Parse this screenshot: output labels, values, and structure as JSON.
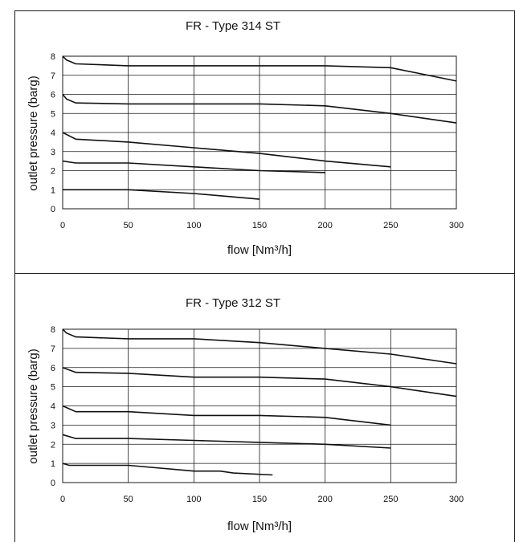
{
  "header": {
    "partial_caption": ""
  },
  "chart_data": [
    {
      "type": "line",
      "title": "FR - Type 314 ST",
      "xlabel": "flow [Nm³/h]",
      "ylabel": "outlet pressure (barg)",
      "xlim": [
        0,
        300
      ],
      "ylim": [
        0,
        8
      ],
      "x_ticks": [
        0,
        50,
        100,
        150,
        200,
        250,
        300
      ],
      "y_ticks": [
        0,
        1,
        2,
        3,
        4,
        5,
        6,
        7,
        8
      ],
      "grid": true,
      "series": [
        {
          "points": [
            [
              0,
              8.0
            ],
            [
              3,
              7.8
            ],
            [
              10,
              7.6
            ],
            [
              50,
              7.5
            ],
            [
              100,
              7.5
            ],
            [
              150,
              7.5
            ],
            [
              200,
              7.5
            ],
            [
              250,
              7.4
            ],
            [
              300,
              6.7
            ]
          ]
        },
        {
          "points": [
            [
              0,
              6.0
            ],
            [
              3,
              5.75
            ],
            [
              10,
              5.55
            ],
            [
              50,
              5.5
            ],
            [
              100,
              5.5
            ],
            [
              150,
              5.5
            ],
            [
              200,
              5.4
            ],
            [
              250,
              5.0
            ],
            [
              300,
              4.5
            ]
          ]
        },
        {
          "points": [
            [
              0,
              4.0
            ],
            [
              10,
              3.65
            ],
            [
              50,
              3.5
            ],
            [
              100,
              3.2
            ],
            [
              150,
              2.9
            ],
            [
              200,
              2.5
            ],
            [
              250,
              2.2
            ]
          ]
        },
        {
          "points": [
            [
              0,
              2.5
            ],
            [
              10,
              2.4
            ],
            [
              50,
              2.4
            ],
            [
              100,
              2.2
            ],
            [
              150,
              2.0
            ],
            [
              200,
              1.9
            ]
          ]
        },
        {
          "points": [
            [
              0,
              1.0
            ],
            [
              50,
              1.0
            ],
            [
              100,
              0.8
            ],
            [
              150,
              0.5
            ]
          ]
        }
      ]
    },
    {
      "type": "line",
      "title": "FR - Type 312 ST",
      "xlabel": "flow [Nm³/h]",
      "ylabel": "outlet pressure (barg)",
      "xlim": [
        0,
        300
      ],
      "ylim": [
        0,
        8
      ],
      "x_ticks": [
        0,
        50,
        100,
        150,
        200,
        250,
        300
      ],
      "y_ticks": [
        0,
        1,
        2,
        3,
        4,
        5,
        6,
        7,
        8
      ],
      "grid": true,
      "series": [
        {
          "points": [
            [
              0,
              8.0
            ],
            [
              3,
              7.8
            ],
            [
              10,
              7.6
            ],
            [
              50,
              7.5
            ],
            [
              100,
              7.5
            ],
            [
              150,
              7.3
            ],
            [
              200,
              7.0
            ],
            [
              250,
              6.7
            ],
            [
              300,
              6.2
            ]
          ]
        },
        {
          "points": [
            [
              0,
              6.0
            ],
            [
              10,
              5.75
            ],
            [
              50,
              5.7
            ],
            [
              100,
              5.5
            ],
            [
              150,
              5.5
            ],
            [
              200,
              5.4
            ],
            [
              250,
              5.0
            ],
            [
              300,
              4.5
            ]
          ]
        },
        {
          "points": [
            [
              0,
              4.0
            ],
            [
              10,
              3.7
            ],
            [
              50,
              3.7
            ],
            [
              100,
              3.5
            ],
            [
              150,
              3.5
            ],
            [
              200,
              3.4
            ],
            [
              250,
              3.0
            ]
          ]
        },
        {
          "points": [
            [
              0,
              2.5
            ],
            [
              10,
              2.3
            ],
            [
              50,
              2.3
            ],
            [
              100,
              2.2
            ],
            [
              150,
              2.1
            ],
            [
              200,
              2.0
            ],
            [
              250,
              1.8
            ]
          ]
        },
        {
          "points": [
            [
              0,
              1.0
            ],
            [
              5,
              0.9
            ],
            [
              50,
              0.9
            ],
            [
              100,
              0.6
            ],
            [
              120,
              0.6
            ],
            [
              130,
              0.5
            ],
            [
              160,
              0.4
            ]
          ]
        }
      ]
    }
  ]
}
